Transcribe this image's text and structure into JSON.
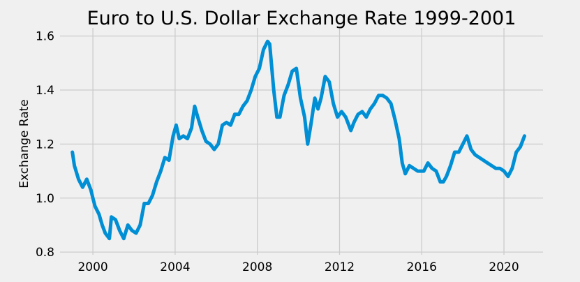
{
  "chart_data": {
    "type": "line",
    "title": "Euro to U.S. Dollar Exchange Rate 1999-2001",
    "xlabel": "",
    "ylabel": "Exchange Rate",
    "xlim": [
      1998.4,
      2021.9
    ],
    "ylim": [
      0.79,
      1.63
    ],
    "x_ticks": [
      2000,
      2004,
      2008,
      2012,
      2016,
      2020
    ],
    "x_tick_labels": [
      "2000",
      "2004",
      "2008",
      "2012",
      "2016",
      "2020"
    ],
    "y_ticks": [
      0.8,
      1.0,
      1.2,
      1.4,
      1.6
    ],
    "y_tick_labels": [
      "0.8",
      "1.0",
      "1.2",
      "1.4",
      "1.6"
    ],
    "grid": true,
    "colors": {
      "line": "#008fd5",
      "plot_bg": "#f0f0f0",
      "fig_bg": "#f0f0f0",
      "grid": "#cbcbcb"
    },
    "series": [
      {
        "x": [
          1999.0,
          1999.1,
          1999.3,
          1999.5,
          1999.7,
          1999.9,
          2000.0,
          2000.1,
          2000.3,
          2000.45,
          2000.6,
          2000.8,
          2000.9,
          2001.1,
          2001.3,
          2001.5,
          2001.7,
          2001.9,
          2002.1,
          2002.3,
          2002.5,
          2002.7,
          2002.9,
          2003.1,
          2003.3,
          2003.5,
          2003.7,
          2003.9,
          2004.05,
          2004.2,
          2004.4,
          2004.6,
          2004.8,
          2004.95,
          2005.1,
          2005.3,
          2005.5,
          2005.7,
          2005.9,
          2006.1,
          2006.3,
          2006.5,
          2006.7,
          2006.9,
          2007.1,
          2007.3,
          2007.5,
          2007.7,
          2007.9,
          2008.1,
          2008.3,
          2008.5,
          2008.6,
          2008.8,
          2008.95,
          2009.1,
          2009.3,
          2009.5,
          2009.7,
          2009.9,
          2010.1,
          2010.3,
          2010.45,
          2010.6,
          2010.8,
          2010.95,
          2011.1,
          2011.3,
          2011.5,
          2011.7,
          2011.9,
          2012.1,
          2012.3,
          2012.55,
          2012.7,
          2012.9,
          2013.1,
          2013.3,
          2013.5,
          2013.7,
          2013.9,
          2014.1,
          2014.3,
          2014.5,
          2014.7,
          2014.9,
          2015.05,
          2015.2,
          2015.4,
          2015.6,
          2015.8,
          2015.95,
          2016.1,
          2016.3,
          2016.5,
          2016.7,
          2016.9,
          2017.05,
          2017.2,
          2017.4,
          2017.6,
          2017.8,
          2018.0,
          2018.2,
          2018.4,
          2018.6,
          2018.8,
          2019.0,
          2019.2,
          2019.4,
          2019.6,
          2019.8,
          2020.0,
          2020.2,
          2020.4,
          2020.6,
          2020.8,
          2021.0
        ],
        "y": [
          1.17,
          1.12,
          1.07,
          1.04,
          1.07,
          1.03,
          1.0,
          0.97,
          0.94,
          0.9,
          0.87,
          0.85,
          0.93,
          0.92,
          0.88,
          0.85,
          0.9,
          0.88,
          0.87,
          0.9,
          0.98,
          0.98,
          1.01,
          1.06,
          1.1,
          1.15,
          1.14,
          1.23,
          1.27,
          1.22,
          1.23,
          1.22,
          1.26,
          1.34,
          1.3,
          1.25,
          1.21,
          1.2,
          1.18,
          1.2,
          1.27,
          1.28,
          1.27,
          1.31,
          1.31,
          1.34,
          1.36,
          1.4,
          1.45,
          1.48,
          1.55,
          1.58,
          1.57,
          1.4,
          1.3,
          1.3,
          1.38,
          1.42,
          1.47,
          1.48,
          1.37,
          1.3,
          1.2,
          1.27,
          1.37,
          1.33,
          1.37,
          1.45,
          1.43,
          1.35,
          1.3,
          1.32,
          1.3,
          1.25,
          1.28,
          1.31,
          1.32,
          1.3,
          1.33,
          1.35,
          1.38,
          1.38,
          1.37,
          1.35,
          1.29,
          1.22,
          1.13,
          1.09,
          1.12,
          1.11,
          1.1,
          1.1,
          1.1,
          1.13,
          1.11,
          1.1,
          1.06,
          1.06,
          1.08,
          1.12,
          1.17,
          1.17,
          1.2,
          1.23,
          1.18,
          1.16,
          1.15,
          1.14,
          1.13,
          1.12,
          1.11,
          1.11,
          1.1,
          1.08,
          1.11,
          1.17,
          1.19,
          1.23
        ]
      }
    ]
  }
}
